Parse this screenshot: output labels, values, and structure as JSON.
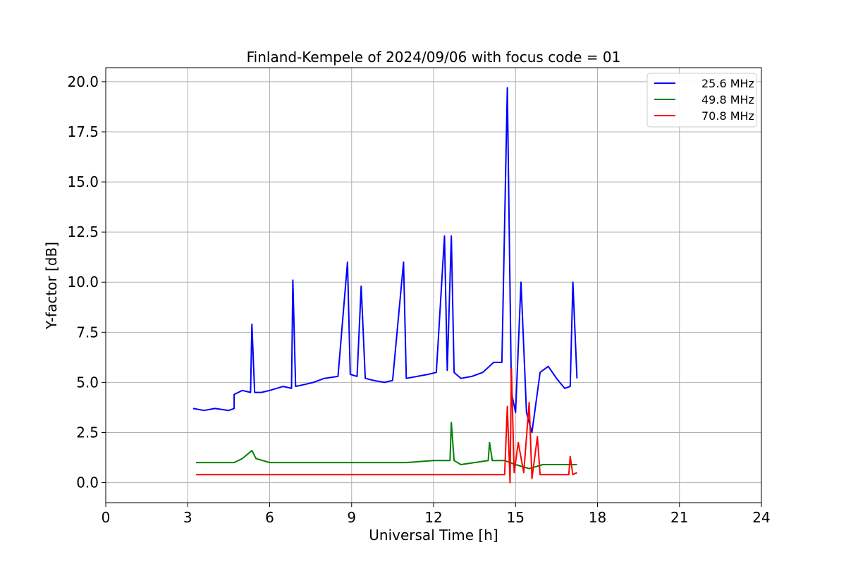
{
  "chart_data": {
    "type": "line",
    "title": "Finland-Kempele of 2024/09/06 with focus code = 01",
    "xlabel": "Universal Time [h]",
    "ylabel": "Y-factor [dB]",
    "xlim": [
      0,
      24
    ],
    "ylim": [
      -1.0,
      20.7
    ],
    "xticks": [
      "0",
      "3",
      "6",
      "9",
      "12",
      "15",
      "18",
      "21",
      "24"
    ],
    "yticks": [
      "0.0",
      "2.5",
      "5.0",
      "7.5",
      "10.0",
      "12.5",
      "15.0",
      "17.5",
      "20.0"
    ],
    "grid": true,
    "legend_position": "top-right",
    "series": [
      {
        "name": "25.6 MHz",
        "color": "#0000ff",
        "points": [
          [
            3.2,
            3.7
          ],
          [
            3.6,
            3.6
          ],
          [
            4.0,
            3.7
          ],
          [
            4.5,
            3.6
          ],
          [
            4.7,
            3.7
          ],
          [
            4.7,
            4.4
          ],
          [
            5.0,
            4.6
          ],
          [
            5.3,
            4.5
          ],
          [
            5.35,
            7.9
          ],
          [
            5.45,
            4.5
          ],
          [
            5.7,
            4.5
          ],
          [
            6.0,
            4.6
          ],
          [
            6.5,
            4.8
          ],
          [
            6.8,
            4.7
          ],
          [
            6.85,
            10.1
          ],
          [
            6.95,
            4.8
          ],
          [
            7.3,
            4.9
          ],
          [
            7.6,
            5.0
          ],
          [
            8.0,
            5.2
          ],
          [
            8.5,
            5.3
          ],
          [
            8.85,
            11.0
          ],
          [
            8.95,
            5.4
          ],
          [
            9.2,
            5.3
          ],
          [
            9.35,
            9.8
          ],
          [
            9.5,
            5.2
          ],
          [
            9.8,
            5.1
          ],
          [
            10.2,
            5.0
          ],
          [
            10.5,
            5.1
          ],
          [
            10.9,
            11.0
          ],
          [
            11.0,
            5.2
          ],
          [
            11.4,
            5.3
          ],
          [
            11.8,
            5.4
          ],
          [
            12.1,
            5.5
          ],
          [
            12.4,
            12.3
          ],
          [
            12.5,
            5.6
          ],
          [
            12.65,
            12.3
          ],
          [
            12.75,
            5.5
          ],
          [
            13.0,
            5.2
          ],
          [
            13.4,
            5.3
          ],
          [
            13.8,
            5.5
          ],
          [
            14.2,
            6.0
          ],
          [
            14.5,
            6.0
          ],
          [
            14.7,
            19.7
          ],
          [
            14.85,
            4.5
          ],
          [
            15.0,
            3.5
          ],
          [
            15.2,
            10.0
          ],
          [
            15.4,
            3.5
          ],
          [
            15.6,
            2.5
          ],
          [
            15.9,
            5.5
          ],
          [
            16.2,
            5.8
          ],
          [
            16.5,
            5.2
          ],
          [
            16.8,
            4.7
          ],
          [
            17.0,
            4.8
          ],
          [
            17.1,
            10.0
          ],
          [
            17.25,
            5.2
          ]
        ]
      },
      {
        "name": "49.8 MHz",
        "color": "#008000",
        "points": [
          [
            3.3,
            1.0
          ],
          [
            4.0,
            1.0
          ],
          [
            4.7,
            1.0
          ],
          [
            5.0,
            1.2
          ],
          [
            5.35,
            1.6
          ],
          [
            5.5,
            1.2
          ],
          [
            6.0,
            1.0
          ],
          [
            7.0,
            1.0
          ],
          [
            8.0,
            1.0
          ],
          [
            9.0,
            1.0
          ],
          [
            10.0,
            1.0
          ],
          [
            11.0,
            1.0
          ],
          [
            12.0,
            1.1
          ],
          [
            12.6,
            1.1
          ],
          [
            12.65,
            3.0
          ],
          [
            12.75,
            1.1
          ],
          [
            13.0,
            0.9
          ],
          [
            13.5,
            1.0
          ],
          [
            14.0,
            1.1
          ],
          [
            14.05,
            2.0
          ],
          [
            14.15,
            1.1
          ],
          [
            14.6,
            1.1
          ],
          [
            15.0,
            0.9
          ],
          [
            15.5,
            0.7
          ],
          [
            16.0,
            0.9
          ],
          [
            16.5,
            0.9
          ],
          [
            17.0,
            0.9
          ],
          [
            17.25,
            0.9
          ]
        ]
      },
      {
        "name": "70.8 MHz",
        "color": "#ff0000",
        "points": [
          [
            3.3,
            0.4
          ],
          [
            4.0,
            0.4
          ],
          [
            5.0,
            0.4
          ],
          [
            6.0,
            0.4
          ],
          [
            7.0,
            0.4
          ],
          [
            8.0,
            0.4
          ],
          [
            9.0,
            0.4
          ],
          [
            10.0,
            0.4
          ],
          [
            11.0,
            0.4
          ],
          [
            12.0,
            0.4
          ],
          [
            13.0,
            0.4
          ],
          [
            14.0,
            0.4
          ],
          [
            14.6,
            0.4
          ],
          [
            14.7,
            3.8
          ],
          [
            14.8,
            0.0
          ],
          [
            14.85,
            5.7
          ],
          [
            14.95,
            0.5
          ],
          [
            15.1,
            2.0
          ],
          [
            15.3,
            0.5
          ],
          [
            15.5,
            4.0
          ],
          [
            15.6,
            0.2
          ],
          [
            15.8,
            2.3
          ],
          [
            15.9,
            0.4
          ],
          [
            16.5,
            0.4
          ],
          [
            16.95,
            0.4
          ],
          [
            17.0,
            1.3
          ],
          [
            17.1,
            0.4
          ],
          [
            17.25,
            0.5
          ]
        ]
      }
    ]
  }
}
